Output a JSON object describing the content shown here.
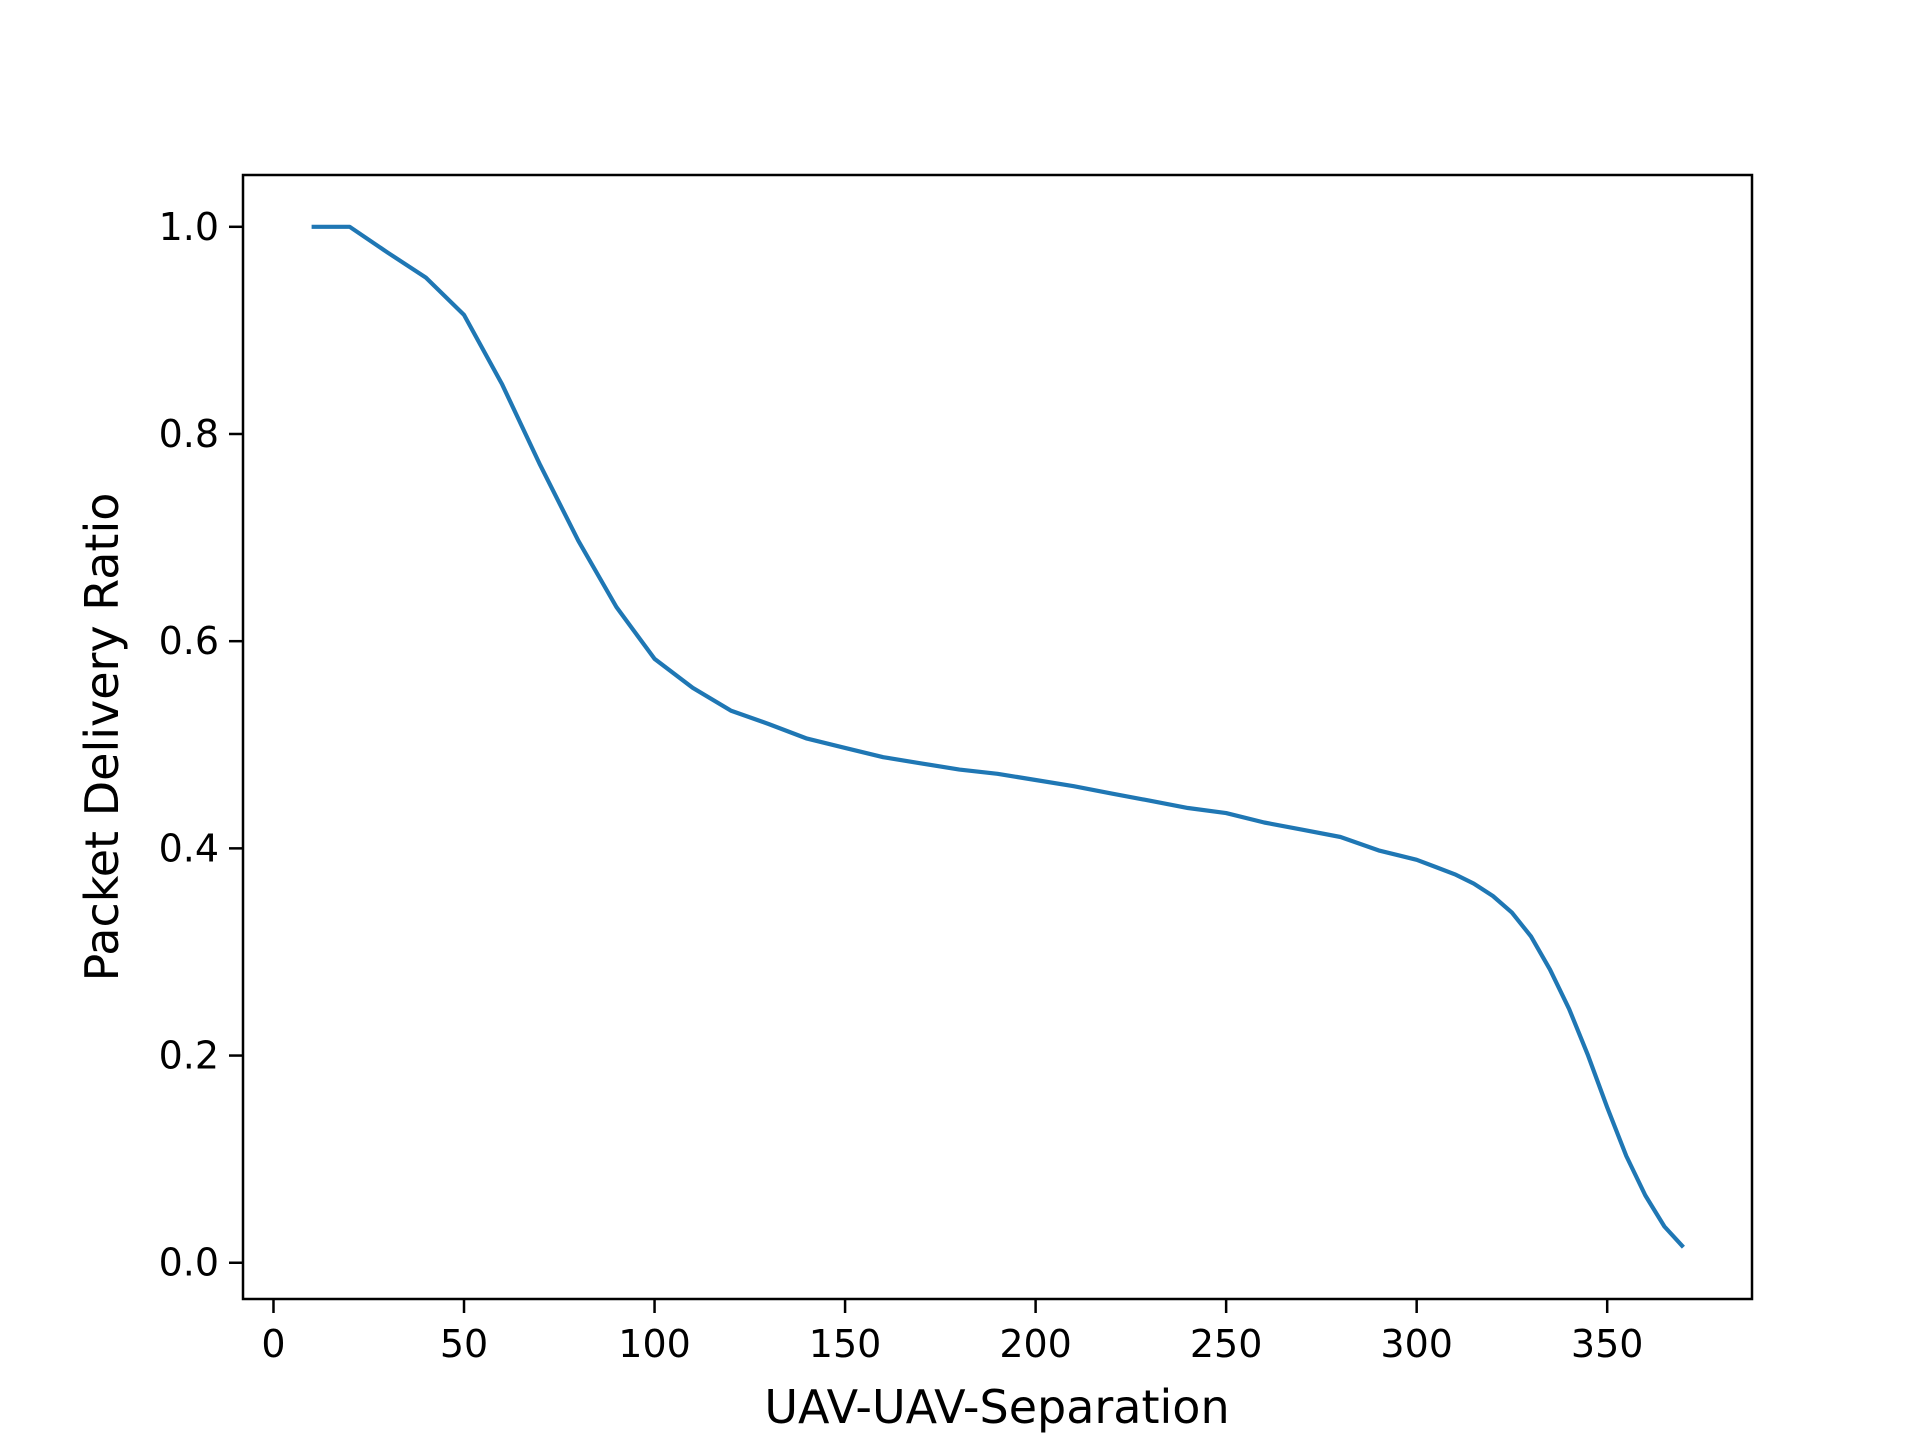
{
  "chart_data": {
    "type": "line",
    "xlabel": "UAV-UAV-Separation",
    "ylabel": "Packet Delivery Ratio",
    "xlim": [
      -8,
      388
    ],
    "ylim": [
      -0.035,
      1.05
    ],
    "x_ticks": [
      0,
      50,
      100,
      150,
      200,
      250,
      300,
      350
    ],
    "y_ticks": [
      0.0,
      0.2,
      0.4,
      0.6,
      0.8,
      1.0
    ],
    "x_tick_labels": [
      "0",
      "50",
      "100",
      "150",
      "200",
      "250",
      "300",
      "350"
    ],
    "y_tick_labels": [
      "0.0",
      "0.2",
      "0.4",
      "0.6",
      "0.8",
      "1.0"
    ],
    "grid": false,
    "legend": "none",
    "series": [
      {
        "color": "#1f77b4",
        "x": [
          10,
          20,
          30,
          40,
          50,
          60,
          70,
          80,
          90,
          100,
          110,
          120,
          130,
          140,
          150,
          160,
          170,
          180,
          190,
          200,
          210,
          220,
          230,
          240,
          250,
          260,
          270,
          280,
          290,
          300,
          305,
          310,
          315,
          320,
          325,
          330,
          335,
          340,
          345,
          350,
          355,
          360,
          365,
          370
        ],
        "y": [
          1.0,
          1.0,
          0.975,
          0.951,
          0.915,
          0.848,
          0.77,
          0.697,
          0.633,
          0.583,
          0.555,
          0.533,
          0.52,
          0.506,
          0.497,
          0.488,
          0.482,
          0.476,
          0.472,
          0.466,
          0.46,
          0.453,
          0.446,
          0.439,
          0.434,
          0.425,
          0.418,
          0.411,
          0.398,
          0.389,
          0.382,
          0.375,
          0.366,
          0.354,
          0.338,
          0.315,
          0.283,
          0.245,
          0.2,
          0.15,
          0.103,
          0.065,
          0.035,
          0.015
        ]
      }
    ]
  }
}
